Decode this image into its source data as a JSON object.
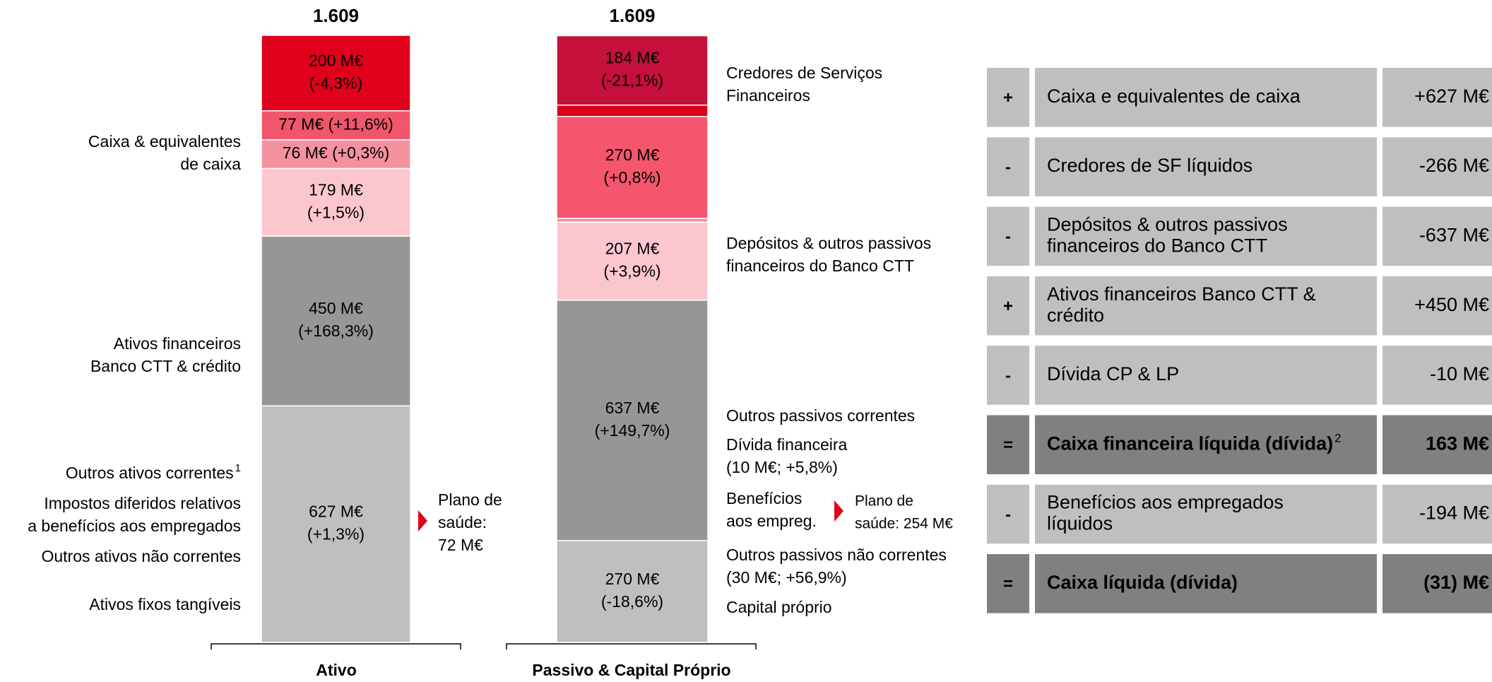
{
  "chart_data": {
    "type": "stacked_bar",
    "ylim": [
      0,
      1609
    ],
    "bars": [
      {
        "category": "Ativo",
        "total": 1609,
        "total_label": "1.609",
        "segments": [
          {
            "value": 627,
            "value_label": [
              "627 M€",
              "(+1,3%)"
            ],
            "label": [
              "Caixa & equivalentes",
              "de caixa"
            ],
            "color": "#bfbfbf"
          },
          {
            "value": 450,
            "value_label": [
              "450 M€",
              "(+168,3%)"
            ],
            "label": [
              "Ativos financeiros",
              "Banco CTT & crédito"
            ],
            "color": "#969696"
          },
          {
            "value": 179,
            "value_label": [
              "179 M€",
              "(+1,5%)"
            ],
            "label": [
              "Outros ativos correntes"
            ],
            "label_note": "1",
            "color": "#fcc6cf"
          },
          {
            "value": 76,
            "value_label": [
              "76 M€ (+0,3%)"
            ],
            "label": [
              "Impostos diferidos relativos",
              "a benefícios aos empregados"
            ],
            "color": "#f4919f"
          },
          {
            "value": 77,
            "value_label": [
              "77 M€ (+11,6%)"
            ],
            "label": [
              "Outros ativos não correntes"
            ],
            "color": "#f0566b"
          },
          {
            "value": 200,
            "value_label": [
              "200 M€",
              "(-4,3%)"
            ],
            "label": [
              "Ativos fixos tangíveis"
            ],
            "color": "#e0001b"
          }
        ]
      },
      {
        "category": "Passivo & Capital Próprio",
        "total": 1609,
        "total_label": "1.609",
        "segments": [
          {
            "value": 270,
            "value_label": [
              "270 M€",
              "(-18,6%)"
            ],
            "label": [
              "Credores de Serviços",
              "Financeiros"
            ],
            "color": "#bfbfbf"
          },
          {
            "value": 637,
            "value_label": [
              "637 M€",
              "(+149,7%)"
            ],
            "label": [
              "Depósitos & outros passivos",
              "financeiros do Banco CTT"
            ],
            "color": "#969696"
          },
          {
            "value": 207,
            "value_label": [
              "207 M€",
              "(+3,9%)"
            ],
            "label": [
              "Outros passivos correntes"
            ],
            "color": "#fcc6cf"
          },
          {
            "value": 10,
            "label": [
              "Dívida financeira",
              "(10 M€; +5,8%)"
            ],
            "color": "#f4919f"
          },
          {
            "value": 270,
            "value_label": [
              "270 M€",
              "(+0,8%)"
            ],
            "label": [
              "Benefícios",
              "aos empreg."
            ],
            "color": "#f5566d"
          },
          {
            "value": 30,
            "label": [
              "Outros passivos não correntes",
              "(30 M€; +56,9%)"
            ],
            "color": "#d9001b"
          },
          {
            "value": 184,
            "value_label": [
              "184 M€",
              "(-21,1%)"
            ],
            "label": [
              "Capital próprio"
            ],
            "color": "#c4103a"
          }
        ]
      }
    ],
    "annotations": [
      {
        "text": [
          "Plano de",
          "saúde:",
          "72 M€"
        ]
      },
      {
        "text": [
          "Plano de",
          "saúde: 254 M€"
        ]
      }
    ]
  },
  "table": {
    "rows": [
      {
        "sign": "+",
        "label": [
          "Caixa e equivalentes de caixa"
        ],
        "value": "+627 M€",
        "bold": false
      },
      {
        "sign": "-",
        "label": [
          "Credores de SF líquidos"
        ],
        "value": "-266 M€",
        "bold": false
      },
      {
        "sign": "-",
        "label": [
          "Depósitos & outros passivos",
          "financeiros do Banco CTT"
        ],
        "value": "-637 M€",
        "bold": false
      },
      {
        "sign": "+",
        "label": [
          "Ativos financeiros Banco CTT &",
          "crédito"
        ],
        "value": "+450 M€",
        "bold": false
      },
      {
        "sign": "-",
        "label": [
          "Dívida CP & LP"
        ],
        "value": "-10 M€",
        "bold": false
      },
      {
        "sign": "=",
        "label": [
          "Caixa financeira líquida  (dívida)"
        ],
        "label_note": "2",
        "value": "163 M€",
        "bold": true
      },
      {
        "sign": "-",
        "label": [
          "Benefícios aos empregados",
          "líquidos"
        ],
        "value": "-194 M€",
        "bold": false
      },
      {
        "sign": "=",
        "label": [
          "Caixa líquida (dívida)"
        ],
        "value": "(31) M€",
        "bold": true
      }
    ]
  }
}
